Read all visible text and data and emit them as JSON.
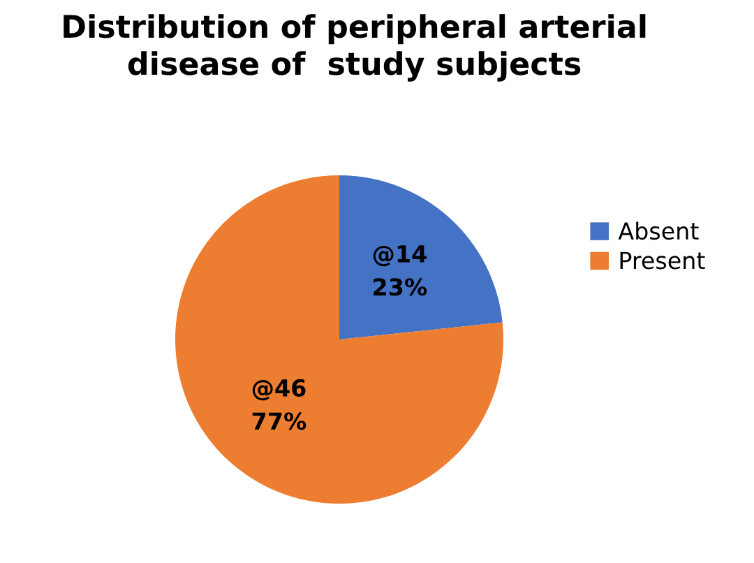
{
  "chart_data": {
    "type": "pie",
    "title": "Distribution of peripheral arterial\ndisease of  study subjects",
    "categories": [
      "Absent",
      "Present"
    ],
    "values": [
      14,
      46
    ],
    "value_labels": [
      "@14\n23%",
      "@46\n77%"
    ],
    "colors": [
      "#4472c4",
      "#ed7d31"
    ],
    "legend": "right"
  }
}
